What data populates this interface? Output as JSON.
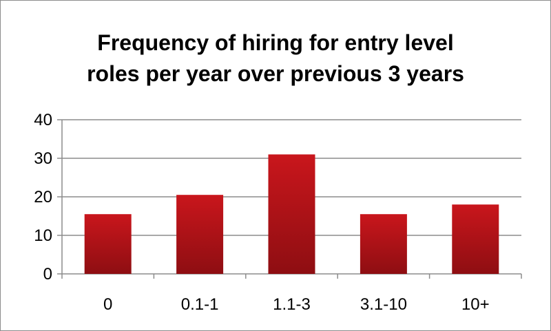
{
  "chart_data": {
    "type": "bar",
    "title_lines": [
      "Frequency of hiring for entry level",
      "roles per year over previous 3 years"
    ],
    "categories": [
      "0",
      "0.1-1",
      "1.1-3",
      "3.1-10",
      "10+"
    ],
    "values": [
      15.5,
      20.5,
      31,
      15.5,
      18
    ],
    "xlabel": "",
    "ylabel": "",
    "ylim": [
      0,
      40
    ],
    "yticks": [
      "0",
      "10",
      "20",
      "30",
      "40"
    ],
    "grid": true,
    "legend": "none",
    "bar_color": "#c0141a"
  }
}
